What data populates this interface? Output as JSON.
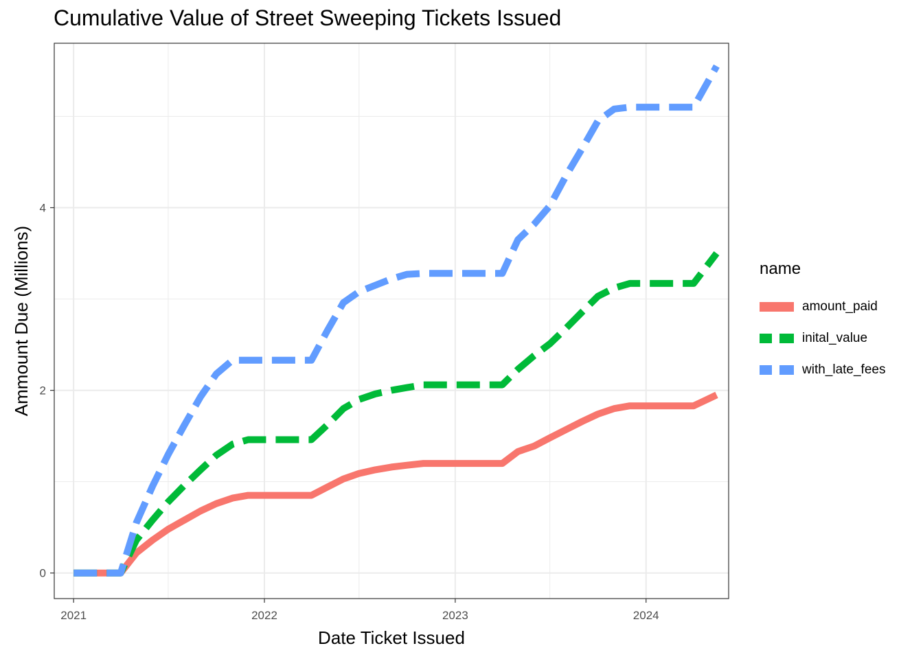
{
  "chart_data": {
    "type": "line",
    "title": "Cumulative Value of Street Sweeping Tickets Issued",
    "xlabel": "Date Ticket Issued",
    "ylabel": "Ammount Due (Millions)",
    "xlim": [
      "2020-11-25",
      "2024-06-07"
    ],
    "ylim": [
      -0.28,
      5.8
    ],
    "x_ticks": [
      {
        "date": "2021-01-01",
        "label": "2021"
      },
      {
        "date": "2022-01-01",
        "label": "2022"
      },
      {
        "date": "2023-01-01",
        "label": "2023"
      },
      {
        "date": "2024-01-01",
        "label": "2024"
      }
    ],
    "x_minor_ticks": [
      "2021-07-01",
      "2022-07-01",
      "2023-07-01"
    ],
    "y_ticks": [
      0,
      2,
      4
    ],
    "y_minor_ticks": [
      1,
      3,
      5
    ],
    "grid": true,
    "legend": {
      "title": "name",
      "position": "right"
    },
    "series": [
      {
        "name": "amount_paid",
        "color": "#F8766D",
        "dash": "solid",
        "points": [
          [
            "2021-01-01",
            0
          ],
          [
            "2021-04-01",
            0
          ],
          [
            "2021-05-01",
            0.22
          ],
          [
            "2021-06-01",
            0.36
          ],
          [
            "2021-07-01",
            0.48
          ],
          [
            "2021-08-01",
            0.58
          ],
          [
            "2021-09-01",
            0.68
          ],
          [
            "2021-10-01",
            0.76
          ],
          [
            "2021-11-01",
            0.82
          ],
          [
            "2021-12-01",
            0.85
          ],
          [
            "2022-01-01",
            0.85
          ],
          [
            "2022-04-01",
            0.85
          ],
          [
            "2022-05-01",
            0.94
          ],
          [
            "2022-06-01",
            1.03
          ],
          [
            "2022-07-01",
            1.09
          ],
          [
            "2022-08-01",
            1.13
          ],
          [
            "2022-09-01",
            1.16
          ],
          [
            "2022-10-01",
            1.18
          ],
          [
            "2022-11-01",
            1.2
          ],
          [
            "2023-01-01",
            1.2
          ],
          [
            "2023-04-01",
            1.2
          ],
          [
            "2023-05-01",
            1.33
          ],
          [
            "2023-06-01",
            1.39
          ],
          [
            "2023-07-01",
            1.48
          ],
          [
            "2023-08-01",
            1.57
          ],
          [
            "2023-09-01",
            1.66
          ],
          [
            "2023-10-01",
            1.74
          ],
          [
            "2023-11-01",
            1.8
          ],
          [
            "2023-12-01",
            1.83
          ],
          [
            "2024-01-01",
            1.83
          ],
          [
            "2024-04-01",
            1.83
          ],
          [
            "2024-05-15",
            1.95
          ]
        ]
      },
      {
        "name": "inital_value",
        "color": "#00BA38",
        "dash": "dashed",
        "points": [
          [
            "2021-01-01",
            0
          ],
          [
            "2021-04-01",
            0
          ],
          [
            "2021-05-01",
            0.36
          ],
          [
            "2021-06-01",
            0.58
          ],
          [
            "2021-07-01",
            0.78
          ],
          [
            "2021-08-01",
            0.96
          ],
          [
            "2021-09-01",
            1.13
          ],
          [
            "2021-10-01",
            1.29
          ],
          [
            "2021-11-01",
            1.41
          ],
          [
            "2021-12-01",
            1.46
          ],
          [
            "2022-01-01",
            1.46
          ],
          [
            "2022-04-01",
            1.46
          ],
          [
            "2022-05-01",
            1.62
          ],
          [
            "2022-06-01",
            1.8
          ],
          [
            "2022-07-01",
            1.9
          ],
          [
            "2022-08-01",
            1.96
          ],
          [
            "2022-09-01",
            2.0
          ],
          [
            "2022-10-01",
            2.03
          ],
          [
            "2022-11-01",
            2.06
          ],
          [
            "2023-01-01",
            2.06
          ],
          [
            "2023-04-01",
            2.06
          ],
          [
            "2023-05-01",
            2.23
          ],
          [
            "2023-06-01",
            2.38
          ],
          [
            "2023-07-01",
            2.51
          ],
          [
            "2023-08-01",
            2.68
          ],
          [
            "2023-09-01",
            2.86
          ],
          [
            "2023-10-01",
            3.03
          ],
          [
            "2023-11-01",
            3.12
          ],
          [
            "2023-12-01",
            3.17
          ],
          [
            "2024-01-01",
            3.17
          ],
          [
            "2024-04-01",
            3.17
          ],
          [
            "2024-05-15",
            3.5
          ]
        ]
      },
      {
        "name": "with_late_fees",
        "color": "#619CFF",
        "dash": "dashed",
        "points": [
          [
            "2021-01-01",
            0
          ],
          [
            "2021-04-01",
            0
          ],
          [
            "2021-05-01",
            0.55
          ],
          [
            "2021-06-01",
            0.95
          ],
          [
            "2021-07-01",
            1.3
          ],
          [
            "2021-08-01",
            1.62
          ],
          [
            "2021-09-01",
            1.93
          ],
          [
            "2021-10-01",
            2.18
          ],
          [
            "2021-11-01",
            2.33
          ],
          [
            "2021-12-01",
            2.33
          ],
          [
            "2022-01-01",
            2.33
          ],
          [
            "2022-04-01",
            2.33
          ],
          [
            "2022-05-01",
            2.65
          ],
          [
            "2022-06-01",
            2.96
          ],
          [
            "2022-07-01",
            3.08
          ],
          [
            "2022-08-01",
            3.15
          ],
          [
            "2022-09-01",
            3.22
          ],
          [
            "2022-10-01",
            3.27
          ],
          [
            "2022-11-01",
            3.28
          ],
          [
            "2023-01-01",
            3.28
          ],
          [
            "2023-04-01",
            3.28
          ],
          [
            "2023-05-01",
            3.65
          ],
          [
            "2023-06-01",
            3.82
          ],
          [
            "2023-07-01",
            4.02
          ],
          [
            "2023-08-01",
            4.35
          ],
          [
            "2023-09-01",
            4.65
          ],
          [
            "2023-10-01",
            4.95
          ],
          [
            "2023-11-01",
            5.08
          ],
          [
            "2023-12-01",
            5.1
          ],
          [
            "2024-01-01",
            5.1
          ],
          [
            "2024-04-01",
            5.1
          ],
          [
            "2024-05-15",
            5.55
          ]
        ]
      }
    ]
  }
}
